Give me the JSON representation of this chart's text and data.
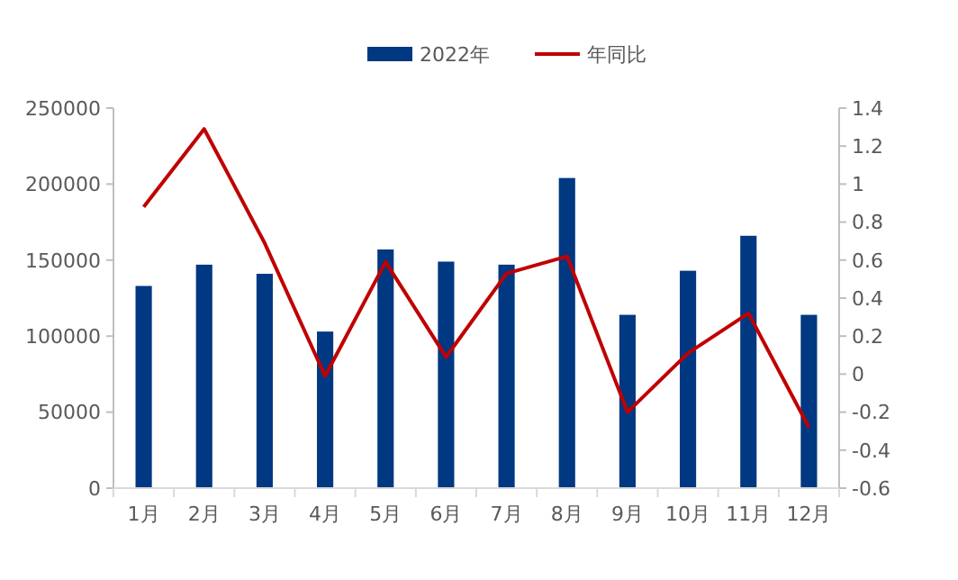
{
  "chart_data": {
    "type": "bar",
    "categories": [
      "1月",
      "2月",
      "3月",
      "4月",
      "5月",
      "6月",
      "7月",
      "8月",
      "9月",
      "10月",
      "11月",
      "12月"
    ],
    "series": [
      {
        "name": "2022年",
        "color": "#003882",
        "values": [
          133000,
          147000,
          141000,
          103000,
          157000,
          149000,
          147000,
          204000,
          114000,
          143000,
          166000,
          114000
        ]
      },
      {
        "name": "年同比",
        "type": "line",
        "axis": "y2",
        "color": "#c00000",
        "values": [
          0.88,
          1.29,
          0.69,
          -0.01,
          0.59,
          0.09,
          0.53,
          0.62,
          -0.2,
          0.11,
          0.32,
          -0.28
        ]
      }
    ],
    "ylim": [
      0,
      250000
    ],
    "yticks": [
      0,
      50000,
      100000,
      150000,
      200000,
      250000
    ],
    "y2lim": [
      -0.6,
      1.4
    ],
    "y2ticks": [
      -0.6,
      -0.4,
      -0.2,
      0,
      0.2,
      0.4,
      0.6,
      0.8,
      1,
      1.2,
      1.4
    ],
    "grid": false,
    "legend": "top",
    "line_style": "solid",
    "marker": "none"
  }
}
